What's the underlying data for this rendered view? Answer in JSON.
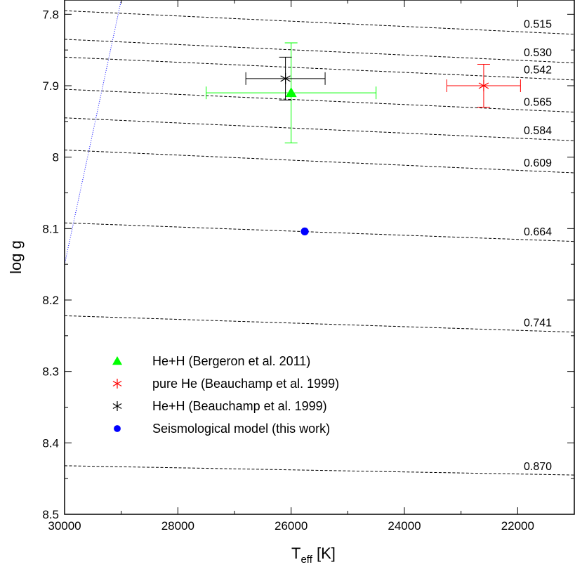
{
  "chart_data": {
    "type": "scatter",
    "title": "",
    "xlabel": {
      "main": "T",
      "sub": "eff",
      "unit": " [K]"
    },
    "ylabel": "log g",
    "xlim": [
      30000,
      21000
    ],
    "ylim": [
      7.78,
      8.5
    ],
    "y_inverted": true,
    "x_reversed": true,
    "grid": false,
    "x_ticks": [
      {
        "value": 30000,
        "label": "30000"
      },
      {
        "value": 28000,
        "label": "28000"
      },
      {
        "value": 26000,
        "label": "26000"
      },
      {
        "value": 24000,
        "label": "24000"
      },
      {
        "value": 22000,
        "label": "22000"
      }
    ],
    "y_ticks": [
      {
        "value": 7.8,
        "label": "7.8"
      },
      {
        "value": 7.9,
        "label": "7.9"
      },
      {
        "value": 8.0,
        "label": "8"
      },
      {
        "value": 8.1,
        "label": "8.1"
      },
      {
        "value": 8.2,
        "label": "8.2"
      },
      {
        "value": 8.3,
        "label": "8.3"
      },
      {
        "value": 8.4,
        "label": "8.4"
      },
      {
        "value": 8.5,
        "label": "8.5"
      }
    ],
    "tracks": [
      {
        "mass": "0.515",
        "y_start": 7.795,
        "y_end": 7.828
      },
      {
        "mass": "0.530",
        "y_start": 7.835,
        "y_end": 7.868
      },
      {
        "mass": "0.542",
        "y_start": 7.86,
        "y_end": 7.892
      },
      {
        "mass": "0.565",
        "y_start": 7.905,
        "y_end": 7.937
      },
      {
        "mass": "0.584",
        "y_start": 7.945,
        "y_end": 7.977
      },
      {
        "mass": "0.609",
        "y_start": 7.99,
        "y_end": 8.022
      },
      {
        "mass": "0.664",
        "y_start": 8.092,
        "y_end": 8.118
      },
      {
        "mass": "0.741",
        "y_start": 8.222,
        "y_end": 8.245
      },
      {
        "mass": "0.870",
        "y_start": 8.432,
        "y_end": 8.445
      }
    ],
    "boundary_line": {
      "points": [
        [
          29000,
          7.78
        ],
        [
          30000,
          8.15
        ]
      ]
    },
    "series": [
      {
        "name": "He+H (Bergeron et al. 2011)",
        "marker": "triangle",
        "color": "#00ff00",
        "x": 26000,
        "y": 7.91,
        "x_err": 1500,
        "y_err": 0.07
      },
      {
        "name": "pure He (Beauchamp et al. 1999)",
        "marker": "asterisk",
        "color": "#ff0000",
        "x": 22600,
        "y": 7.9,
        "x_err": 650,
        "y_err": 0.03
      },
      {
        "name": "He+H (Beauchamp et al. 1999)",
        "marker": "asterisk",
        "color": "#000000",
        "x": 26100,
        "y": 7.89,
        "x_err": 700,
        "y_err": 0.03
      },
      {
        "name": "Seismological model (this work)",
        "marker": "circle",
        "color": "#0000ff",
        "x": 25760,
        "y": 8.104
      }
    ],
    "legend_position": "bottom-left"
  }
}
